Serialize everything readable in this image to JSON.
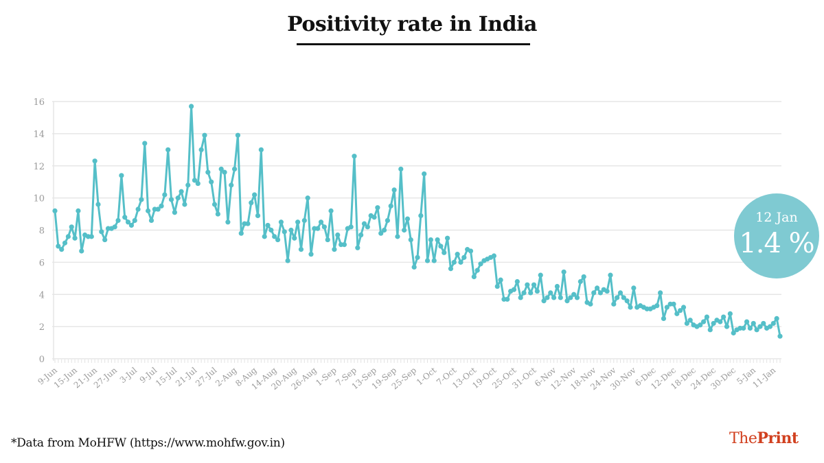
{
  "title": "Positivity rate in India",
  "source_note": "*Data from MoHFW (https://www.mohfw.gov.in)",
  "brand": {
    "prefix": "The",
    "name": "Print"
  },
  "callout": {
    "date": "12 Jan",
    "value": "1.4 %"
  },
  "colors": {
    "line": "#55bfc8",
    "badge": "#7fcad2",
    "grid": "#e6e6e6",
    "brand": "#d1401f"
  },
  "chart_data": {
    "type": "line",
    "title": "Positivity rate in India",
    "xlabel": "",
    "ylabel": "",
    "ylim": [
      0,
      16
    ],
    "yticks": [
      0,
      2,
      4,
      6,
      8,
      10,
      12,
      14,
      16
    ],
    "grid": true,
    "x_start": "9-Jun",
    "x_end": "12-Jan",
    "xtick_labels": [
      "9-Jun",
      "15-Jun",
      "21-Jun",
      "27-Jun",
      "3-Jul",
      "9-Jul",
      "15-Jul",
      "21-Jul",
      "27-Jul",
      "2-Aug",
      "8-Aug",
      "14-Aug",
      "20-Aug",
      "26-Aug",
      "1-Sep",
      "7-Sep",
      "13-Sep",
      "19-Sep",
      "25-Sep",
      "1-Oct",
      "7-Oct",
      "13-Oct",
      "19-Oct",
      "25-Oct",
      "31-Oct",
      "6-Nov",
      "12-Nov",
      "18-Nov",
      "24-Nov",
      "30-Nov",
      "6-Dec",
      "12-Dec",
      "18-Dec",
      "24-Dec",
      "30-Dec",
      "5-Jan",
      "11-Jan"
    ],
    "xtick_every_days": 6,
    "series": [
      {
        "name": "Positivity rate (%)",
        "values": [
          9.2,
          7.0,
          6.8,
          7.2,
          7.6,
          8.2,
          7.5,
          9.2,
          6.7,
          7.7,
          7.6,
          7.6,
          12.3,
          9.6,
          7.9,
          7.4,
          8.1,
          8.1,
          8.2,
          8.6,
          11.4,
          8.8,
          8.5,
          8.3,
          8.6,
          9.3,
          9.9,
          13.4,
          9.2,
          8.6,
          9.3,
          9.3,
          9.5,
          10.2,
          13.0,
          9.9,
          9.1,
          10.0,
          10.4,
          9.6,
          10.8,
          15.7,
          11.1,
          10.9,
          13.0,
          13.9,
          11.6,
          11.0,
          9.6,
          9.0,
          11.8,
          11.6,
          8.5,
          10.8,
          11.8,
          13.9,
          7.8,
          8.4,
          8.4,
          9.7,
          10.2,
          8.9,
          13.0,
          7.6,
          8.3,
          8.0,
          7.6,
          7.4,
          8.5,
          7.9,
          6.1,
          8.0,
          7.5,
          8.5,
          6.8,
          8.6,
          10.0,
          6.5,
          8.1,
          8.1,
          8.5,
          8.2,
          7.4,
          9.2,
          6.8,
          7.7,
          7.1,
          7.1,
          8.1,
          8.2,
          12.6,
          6.9,
          7.7,
          8.4,
          8.2,
          8.9,
          8.8,
          9.4,
          7.8,
          8.0,
          8.6,
          9.5,
          10.5,
          7.6,
          11.8,
          8.0,
          8.7,
          7.4,
          5.7,
          6.3,
          8.9,
          11.5,
          6.1,
          7.4,
          6.1,
          7.4,
          7.0,
          6.6,
          7.5,
          5.6,
          6.0,
          6.5,
          6.0,
          6.3,
          6.8,
          6.7,
          5.1,
          5.5,
          5.9,
          6.1,
          6.2,
          6.3,
          6.4,
          4.5,
          4.9,
          3.7,
          3.7,
          4.2,
          4.3,
          4.8,
          3.8,
          4.1,
          4.6,
          4.1,
          4.6,
          4.2,
          5.2,
          3.6,
          3.8,
          4.1,
          3.8,
          4.5,
          3.8,
          5.4,
          3.6,
          3.8,
          4.0,
          3.8,
          4.8,
          5.1,
          3.5,
          3.4,
          4.1,
          4.4,
          4.1,
          4.3,
          4.2,
          5.2,
          3.4,
          3.8,
          4.1,
          3.8,
          3.6,
          3.2,
          4.4,
          3.2,
          3.3,
          3.2,
          3.1,
          3.1,
          3.2,
          3.3,
          4.1,
          2.5,
          3.2,
          3.4,
          3.4,
          2.8,
          3.0,
          3.2,
          2.2,
          2.4,
          2.1,
          2.0,
          2.1,
          2.3,
          2.6,
          1.8,
          2.2,
          2.4,
          2.3,
          2.6,
          2.0,
          2.8,
          1.6,
          1.8,
          1.9,
          1.9,
          2.3,
          1.9,
          2.2,
          1.8,
          2.0,
          2.2,
          1.9,
          2.0,
          2.2,
          2.5,
          1.4
        ]
      }
    ],
    "annotations": [
      {
        "label": "12 Jan",
        "value": "1.4 %"
      }
    ],
    "legend": "none"
  }
}
